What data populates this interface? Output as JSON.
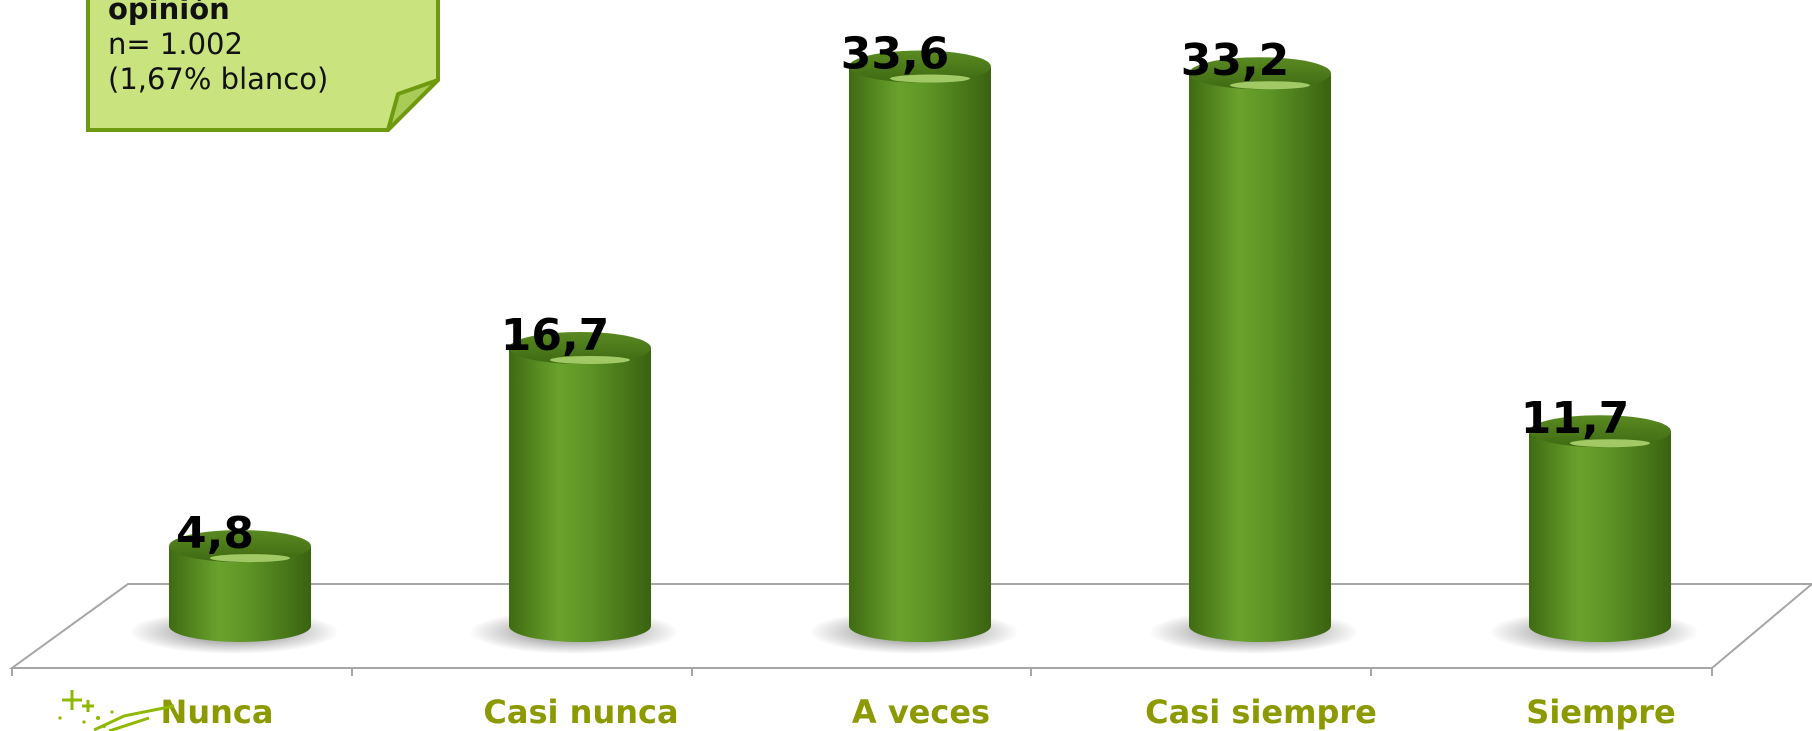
{
  "note": {
    "title": "opinión",
    "line1": "n= 1.002",
    "line2": "(1,67% blanco)"
  },
  "chart_data": {
    "type": "bar",
    "title": "",
    "xlabel": "",
    "ylabel": "",
    "categories": [
      "Nunca",
      "Casi nunca",
      "A veces",
      "Casi siempre",
      "Siempre"
    ],
    "values": [
      4.8,
      16.7,
      33.6,
      33.2,
      11.7
    ],
    "data_labels": [
      "4,8",
      "16,7",
      "33,6",
      "33,2",
      "11,7"
    ],
    "ylim": [
      0,
      35
    ],
    "grid": false,
    "legend": "none",
    "style": "3d-cylinders"
  },
  "colors": {
    "bar": "#5a8f22",
    "bar_dark": "#3f6a12",
    "bar_light": "#8cbf45",
    "category_label": "#8a9a00",
    "data_label": "#000000",
    "note_fill": "#c9e47f",
    "note_border": "#6f9a0f",
    "floor_line": "#a6a6a6"
  }
}
